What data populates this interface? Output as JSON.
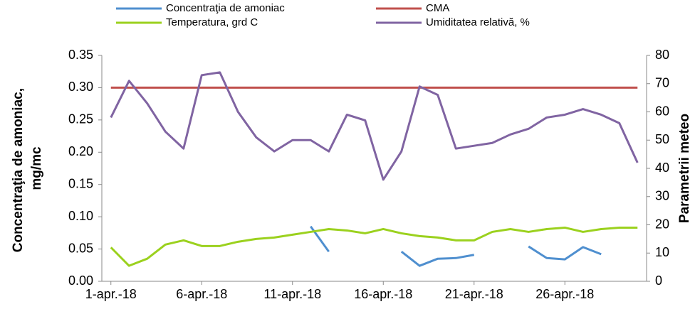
{
  "chart_data": {
    "type": "line",
    "ylabel": [
      "Concentraţia de amoniac,",
      "mg/mc"
    ],
    "y2label": "Parametrii meteo",
    "categories": [
      "1-apr.-18",
      null,
      null,
      null,
      null,
      "6-apr.-18",
      null,
      null,
      null,
      null,
      "11-apr.-18",
      null,
      null,
      null,
      null,
      "16-apr.-18",
      null,
      null,
      null,
      null,
      "21-apr.-18",
      null,
      null,
      null,
      null,
      "26-apr.-18",
      null,
      null,
      null,
      null
    ],
    "ylim": [
      0,
      0.35
    ],
    "yticks": [
      {
        "value": 0,
        "label": "0.00"
      },
      {
        "value": 0.05,
        "label": "0.05"
      },
      {
        "value": 0.1,
        "label": "0.10"
      },
      {
        "value": 0.15,
        "label": "0.15"
      },
      {
        "value": 0.2,
        "label": "0.20"
      },
      {
        "value": 0.25,
        "label": "0.25"
      },
      {
        "value": 0.3,
        "label": "0.30"
      },
      {
        "value": 0.35,
        "label": "0.35"
      }
    ],
    "y2lim": [
      0,
      80
    ],
    "y2ticks": [
      0,
      10,
      20,
      30,
      40,
      50,
      60,
      70,
      80
    ],
    "series": [
      {
        "name": "Concentraţia de amoniac",
        "color": "#4f8fcf",
        "values": [
          null,
          null,
          null,
          null,
          null,
          null,
          null,
          null,
          null,
          null,
          null,
          0.085,
          0.046,
          null,
          null,
          null,
          0.046,
          0.024,
          0.035,
          0.036,
          0.041,
          null,
          null,
          0.054,
          0.036,
          0.034,
          0.053,
          0.042,
          null,
          null
        ]
      },
      {
        "name": "CMA",
        "color": "#c0504d",
        "values": [
          0.3,
          0.3,
          0.3,
          0.3,
          0.3,
          0.3,
          0.3,
          0.3,
          0.3,
          0.3,
          0.3,
          0.3,
          0.3,
          0.3,
          0.3,
          0.3,
          0.3,
          0.3,
          0.3,
          0.3,
          0.3,
          0.3,
          0.3,
          0.3,
          0.3,
          0.3,
          0.3,
          0.3,
          0.3,
          0.3
        ]
      },
      {
        "name": "Temperatura, grd C",
        "color": "#9bd11e",
        "axis": "y2",
        "values": [
          12,
          5.5,
          8,
          13,
          14.5,
          12.5,
          12.5,
          14,
          15,
          15.5,
          16.5,
          17.5,
          18.5,
          18,
          17,
          18.5,
          17,
          16,
          15.5,
          14.5,
          14.5,
          17.5,
          18.5,
          17.5,
          18.5,
          19,
          17.5,
          18.5,
          19,
          19
        ]
      },
      {
        "name": "Umiditatea relativă, %",
        "color": "#8064a2",
        "axis": "y2",
        "values": [
          58,
          71,
          63,
          53,
          47,
          73,
          74,
          60,
          51,
          46,
          50,
          50,
          46,
          59,
          57,
          36,
          46,
          69,
          66,
          47,
          48,
          49,
          52,
          54,
          58,
          59,
          61,
          59,
          56,
          42
        ]
      }
    ]
  }
}
